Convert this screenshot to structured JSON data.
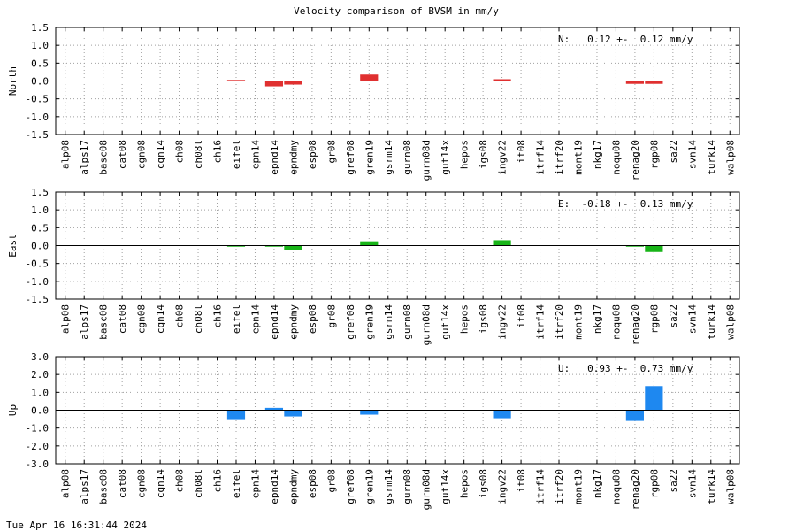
{
  "page_title": "Velocity comparison of BVSM in mm/y",
  "timestamp": "Tue Apr 16 16:31:44 2024",
  "chart_data": [
    {
      "type": "bar",
      "ylabel": "North",
      "annotation": "N:   0.12 +-  0.12 mm/y",
      "color": "#e03030",
      "ylim": [
        -1.5,
        1.5
      ],
      "yticks": [
        1.5,
        1.0,
        0.5,
        0.0,
        -0.5,
        -1.0,
        -1.5
      ],
      "ytick_labels": [
        "1.5",
        "1.0",
        "0.5",
        "0.0",
        "-0.5",
        "-1.0",
        "-1.5"
      ],
      "grid": true,
      "categories": [
        "alp08",
        "alps17",
        "basc08",
        "cat08",
        "cgn08",
        "cgn14",
        "ch08",
        "ch08l",
        "ch16",
        "eifel",
        "epn14",
        "epnd14",
        "epndmy",
        "esp08",
        "gr08",
        "gref08",
        "gren19",
        "gsrm14",
        "gurn08",
        "gurn08d",
        "gut14x",
        "hepos",
        "igs08",
        "ingv22",
        "it08",
        "itrf14",
        "itrf20",
        "mont19",
        "nkg17",
        "noqu08",
        "renag20",
        "rgp08",
        "sa22",
        "svn14",
        "turk14",
        "walp08"
      ],
      "values": [
        0,
        0,
        0,
        0,
        0,
        0,
        0,
        0,
        0,
        0.03,
        0,
        -0.15,
        -0.1,
        0,
        0,
        0,
        0.18,
        0,
        0,
        0,
        0,
        0,
        0,
        0.05,
        0,
        0,
        0,
        0,
        0,
        0,
        -0.08,
        -0.08,
        0,
        0,
        0,
        0
      ]
    },
    {
      "type": "bar",
      "ylabel": "East",
      "annotation": "E:  -0.18 +-  0.13 mm/y",
      "color": "#18b418",
      "ylim": [
        -1.5,
        1.5
      ],
      "yticks": [
        1.5,
        1.0,
        0.5,
        0.0,
        -0.5,
        -1.0,
        -1.5
      ],
      "ytick_labels": [
        "1.5",
        "1.0",
        "0.5",
        "0.0",
        "-0.5",
        "-1.0",
        "-1.5"
      ],
      "grid": true,
      "categories": [
        "alp08",
        "alps17",
        "basc08",
        "cat08",
        "cgn08",
        "cgn14",
        "ch08",
        "ch08l",
        "ch16",
        "eifel",
        "epn14",
        "epnd14",
        "epndmy",
        "esp08",
        "gr08",
        "gref08",
        "gren19",
        "gsrm14",
        "gurn08",
        "gurn08d",
        "gut14x",
        "hepos",
        "igs08",
        "ingv22",
        "it08",
        "itrf14",
        "itrf20",
        "mont19",
        "nkg17",
        "noqu08",
        "renag20",
        "rgp08",
        "sa22",
        "svn14",
        "turk14",
        "walp08"
      ],
      "values": [
        0,
        0,
        0,
        0,
        0,
        0,
        0,
        0,
        0,
        -0.03,
        0,
        -0.03,
        -0.13,
        0,
        0,
        0,
        0.12,
        0,
        0,
        0,
        0,
        0,
        0,
        0.15,
        0,
        0,
        0,
        0,
        0,
        0,
        -0.03,
        -0.18,
        0,
        0,
        0,
        0
      ]
    },
    {
      "type": "bar",
      "ylabel": "Up",
      "annotation": "U:   0.93 +-  0.73 mm/y",
      "color": "#1e88f0",
      "ylim": [
        -3.0,
        3.0
      ],
      "yticks": [
        3.0,
        2.0,
        1.0,
        0.0,
        -1.0,
        -2.0,
        -3.0
      ],
      "ytick_labels": [
        "3.0",
        "2.0",
        "1.0",
        "0.0",
        "-1.0",
        "-2.0",
        "-3.0"
      ],
      "grid": true,
      "categories": [
        "alp08",
        "alps17",
        "basc08",
        "cat08",
        "cgn08",
        "cgn14",
        "ch08",
        "ch08l",
        "ch16",
        "eifel",
        "epn14",
        "epnd14",
        "epndmy",
        "esp08",
        "gr08",
        "gref08",
        "gren19",
        "gsrm14",
        "gurn08",
        "gurn08d",
        "gut14x",
        "hepos",
        "igs08",
        "ingv22",
        "it08",
        "itrf14",
        "itrf20",
        "mont19",
        "nkg17",
        "noqu08",
        "renag20",
        "rgp08",
        "sa22",
        "svn14",
        "turk14",
        "walp08"
      ],
      "values": [
        0,
        0,
        0,
        0,
        0,
        0,
        0,
        0,
        0,
        -0.55,
        0,
        0.13,
        -0.35,
        0,
        0,
        0,
        -0.25,
        0,
        0,
        0,
        0,
        0,
        0,
        -0.45,
        0,
        0,
        0,
        0,
        0,
        0,
        -0.6,
        1.35,
        0,
        0,
        0,
        0
      ]
    }
  ]
}
